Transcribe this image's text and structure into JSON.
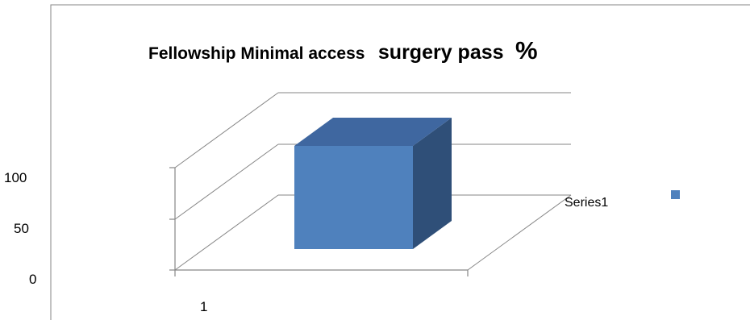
{
  "chart_data": {
    "type": "bar",
    "title_parts": [
      "Fellowship Minimal access",
      "surgery pass",
      "%"
    ],
    "categories": [
      "1"
    ],
    "series": [
      {
        "name": "Series1",
        "values": [
          100
        ]
      }
    ],
    "y_ticks": [
      "0",
      "50",
      "100"
    ],
    "ylim": [
      0,
      150
    ],
    "legend": "right",
    "grid": true,
    "three_d": true,
    "colors": {
      "front": "#4F81BD",
      "top": "#3F67A0",
      "side": "#2F4F78",
      "legend_marker": "#4F81BD",
      "gridline": "#868686"
    }
  }
}
